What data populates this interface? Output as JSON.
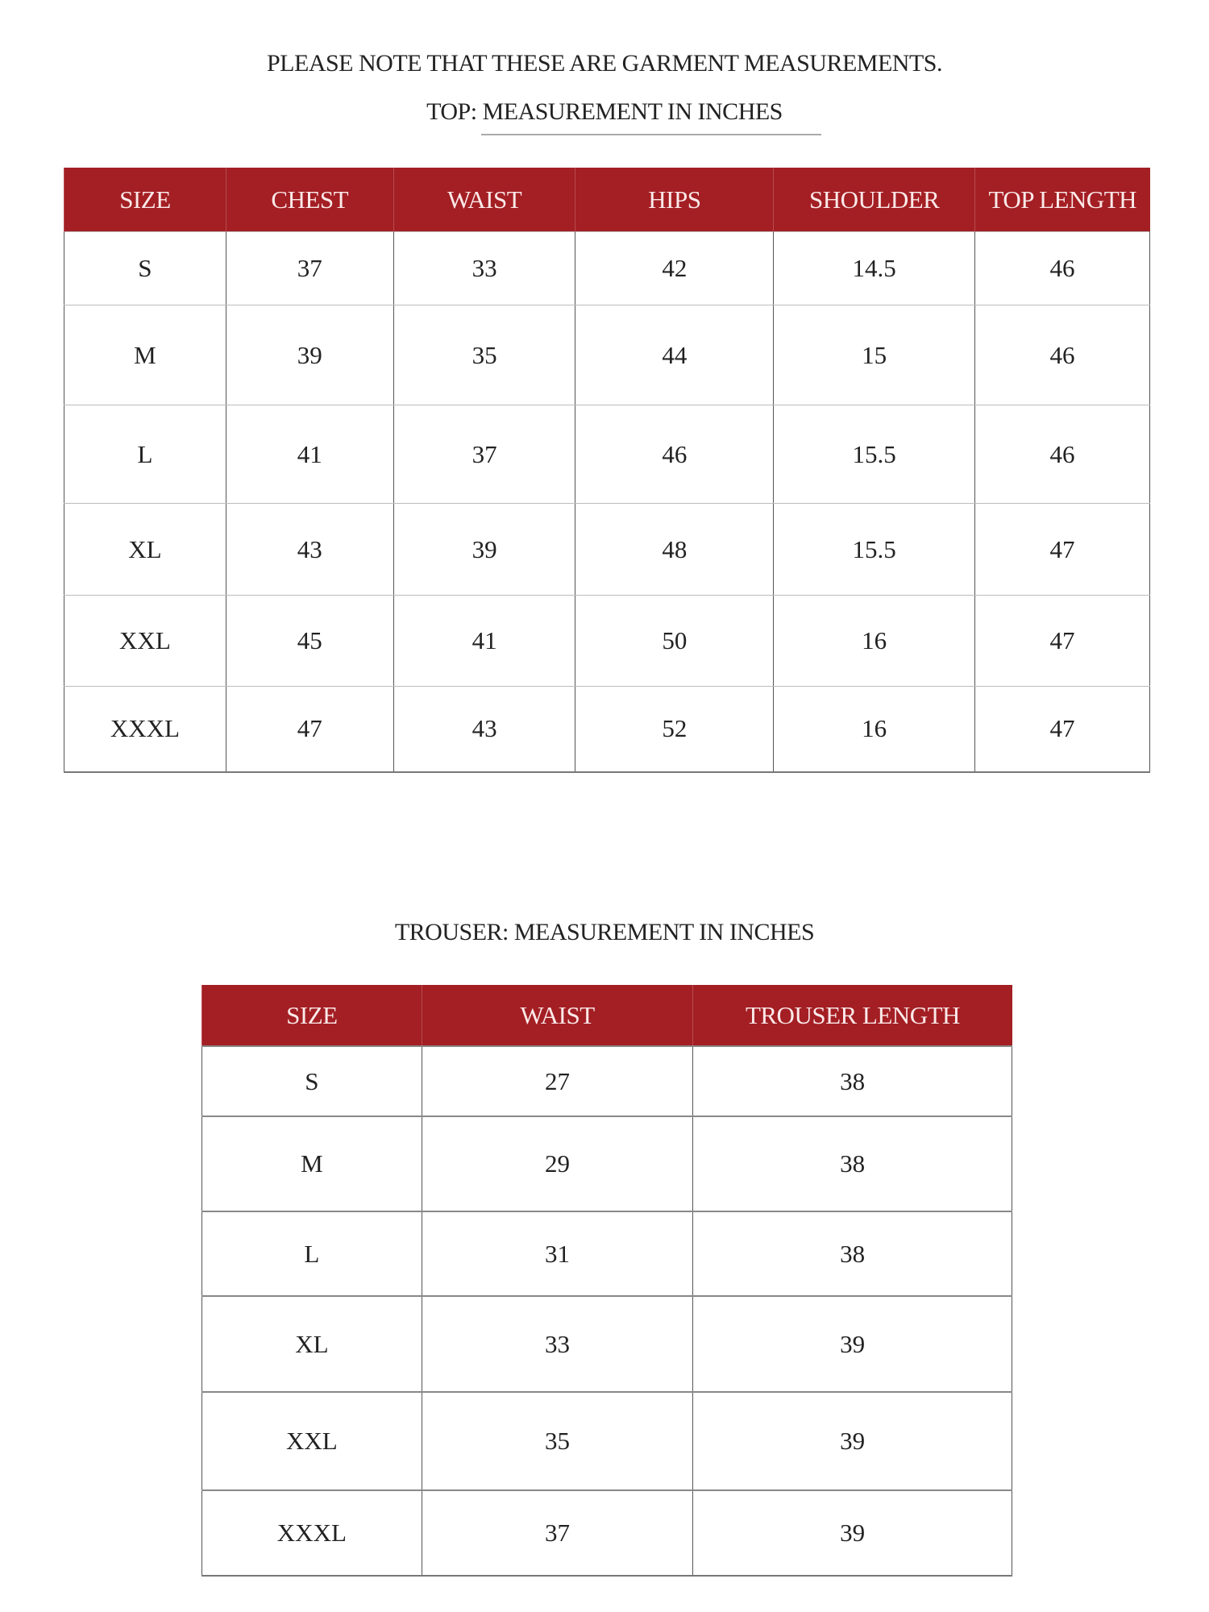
{
  "note": "PLEASE NOTE  THAT THESE ARE GARMENT MEASUREMENTS.",
  "top": {
    "title": "TOP: MEASUREMENT IN INCHES",
    "headers": [
      "SIZE",
      "CHEST",
      "WAIST",
      "HIPS",
      "SHOULDER",
      "TOP LENGTH"
    ],
    "rows": [
      [
        "S",
        "37",
        "33",
        "42",
        "14.5",
        "46"
      ],
      [
        "M",
        "39",
        "35",
        "44",
        "15",
        "46"
      ],
      [
        "L",
        "41",
        "37",
        "46",
        "15.5",
        "46"
      ],
      [
        "XL",
        "43",
        "39",
        "48",
        "15.5",
        "47"
      ],
      [
        "XXL",
        "45",
        "41",
        "50",
        "16",
        "47"
      ],
      [
        "XXXL",
        "47",
        "43",
        "52",
        "16",
        "47"
      ]
    ]
  },
  "trouser": {
    "title": "TROUSER: MEASUREMENT IN INCHES",
    "headers": [
      "SIZE",
      "WAIST",
      "TROUSER LENGTH"
    ],
    "rows": [
      [
        "S",
        "27",
        "38"
      ],
      [
        "M",
        "29",
        "38"
      ],
      [
        "L",
        "31",
        "38"
      ],
      [
        "XL",
        "33",
        "39"
      ],
      [
        "XXL",
        "35",
        "39"
      ],
      [
        "XXXL",
        "37",
        "39"
      ]
    ]
  },
  "colors": {
    "header": "#a31f24"
  }
}
